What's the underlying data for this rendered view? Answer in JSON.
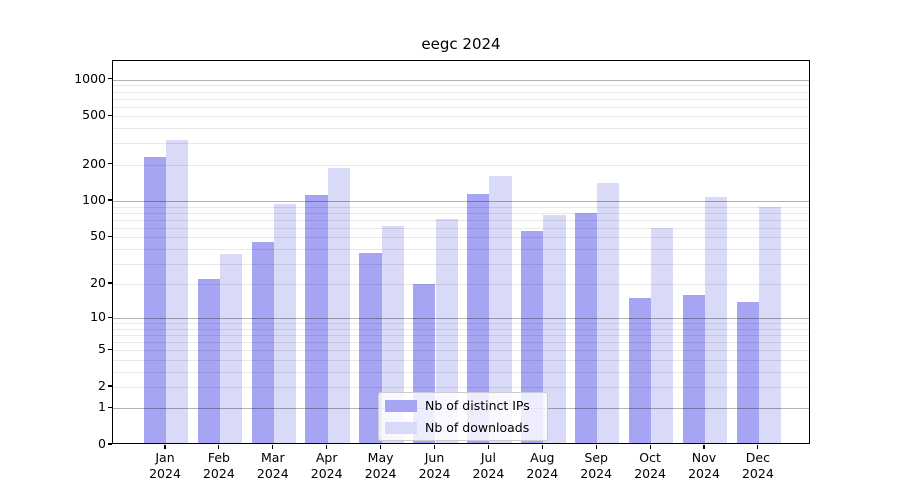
{
  "title": "eegc 2024",
  "chart_data": {
    "type": "bar",
    "title": "eegc 2024",
    "categories": [
      "Jan",
      "Feb",
      "Mar",
      "Apr",
      "May",
      "Jun",
      "Jul",
      "Aug",
      "Sep",
      "Oct",
      "Nov",
      "Dec"
    ],
    "year_label": "2024",
    "series": [
      {
        "name": "Nb of distinct IPs",
        "color": "#a5a5f3",
        "values": [
          232,
          22,
          46,
          112,
          37,
          20,
          115,
          56,
          80,
          15,
          16,
          14
        ]
      },
      {
        "name": "Nb of downloads",
        "color": "#d9d9f8",
        "values": [
          320,
          36,
          95,
          187,
          62,
          71,
          162,
          76,
          140,
          60,
          109,
          90
        ]
      }
    ],
    "yscale": "log1p",
    "yticks": [
      0,
      1,
      2,
      5,
      10,
      20,
      50,
      100,
      200,
      500,
      1000
    ],
    "ylim": [
      0,
      1400
    ],
    "grid": "horizontal",
    "grid_major_at": [
      1,
      10,
      100,
      1000
    ],
    "legend_position": "lower-center",
    "colors": {
      "grid_major": "rgba(0,0,0,0.30)",
      "grid_minor": "rgba(0,0,0,0.09)",
      "axis": "#000000",
      "background": "#ffffff"
    }
  }
}
